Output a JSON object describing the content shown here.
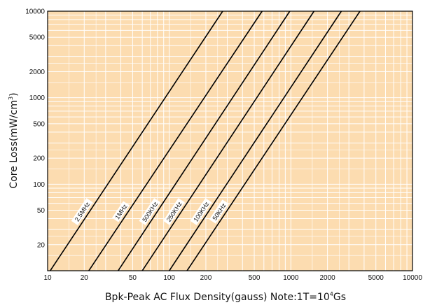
{
  "chart_data": {
    "type": "line",
    "x_scale": "log",
    "y_scale": "log",
    "xlim": [
      10,
      10000
    ],
    "ylim": [
      10,
      10000
    ],
    "xticks": [
      10,
      20,
      50,
      100,
      200,
      500,
      1000,
      2000,
      5000,
      10000
    ],
    "yticks": [
      20,
      50,
      100,
      200,
      500,
      1000,
      2000,
      5000,
      10000
    ],
    "xlabel_main": "Bpk-Peak AC Flux Density(gauss) Note:1T=10",
    "xlabel_sup": "4",
    "xlabel_tail": "Gs",
    "ylabel_main": "Core Loss(mW/cm",
    "ylabel_sup": "3",
    "ylabel_tail": ")",
    "grid": true,
    "colors": {
      "background": "#fcdcb0",
      "grid": "#ffffff",
      "line": "#000000",
      "axis": "#000000"
    },
    "series": [
      {
        "name": "2.5MHz",
        "points": [
          [
            10.5,
            10
          ],
          [
            275,
            10000
          ]
        ]
      },
      {
        "name": "1MHz",
        "points": [
          [
            21.8,
            10
          ],
          [
            580,
            10000
          ]
        ]
      },
      {
        "name": "500KHz",
        "points": [
          [
            38,
            10
          ],
          [
            980,
            10000
          ]
        ]
      },
      {
        "name": "250KHz",
        "points": [
          [
            60,
            10
          ],
          [
            1550,
            10000
          ]
        ]
      },
      {
        "name": "100KHz",
        "points": [
          [
            100,
            10
          ],
          [
            2600,
            10000
          ]
        ]
      },
      {
        "name": "50KHz",
        "points": [
          [
            140,
            10
          ],
          [
            3700,
            10000
          ]
        ]
      }
    ]
  }
}
